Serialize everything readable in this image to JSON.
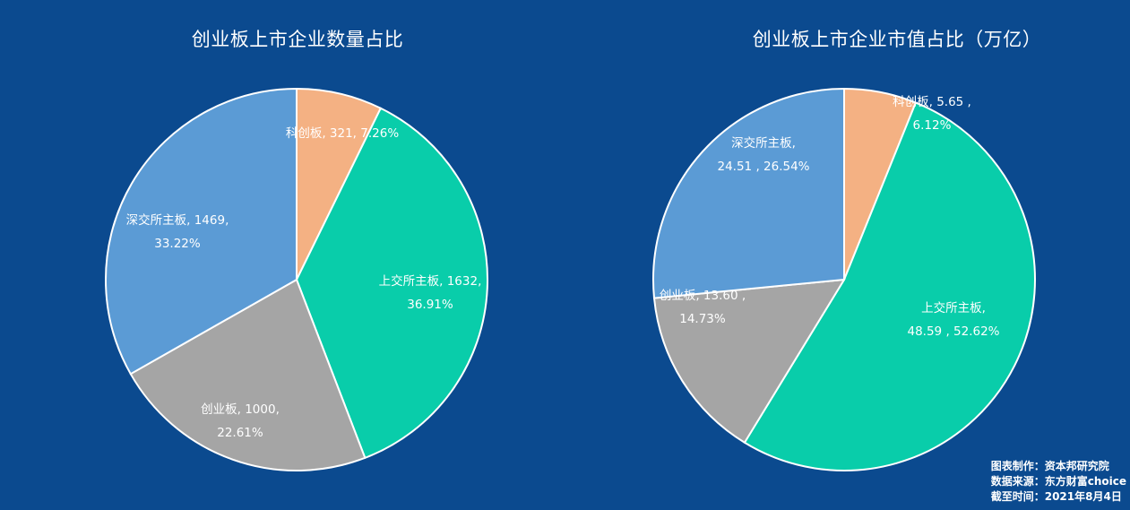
{
  "source": {
    "line1": "图表制作：资本邦研究院",
    "line2": "数据来源：东方财富choice",
    "line3": "截至时间：2021年8月4日"
  },
  "chart_data": [
    {
      "type": "pie",
      "title": "创业板上市企业数量占比",
      "slices": [
        {
          "name": "科创板",
          "value": 321,
          "percent": "7.26%",
          "color": "#f4b183"
        },
        {
          "name": "上交所主板",
          "value": 1632,
          "percent": "36.91%",
          "color": "#09cdaa"
        },
        {
          "name": "创业板",
          "value": 1000,
          "percent": "22.61%",
          "color": "#a5a5a5"
        },
        {
          "name": "深交所主板",
          "value": 1469,
          "percent": "33.22%",
          "color": "#5b9bd5"
        }
      ],
      "labels": [
        {
          "line1": "科创板, 321, 7.26%",
          "line2": ""
        },
        {
          "line1": "上交所主板, 1632,",
          "line2": "36.91%"
        },
        {
          "line1": "创业板, 1000,",
          "line2": "22.61%"
        },
        {
          "line1": "深交所主板, 1469,",
          "line2": "33.22%"
        }
      ]
    },
    {
      "type": "pie",
      "title": "创业板上市企业市值占比（万亿）",
      "slices": [
        {
          "name": "科创板",
          "value": 5.65,
          "percent": "6.12%",
          "color": "#f4b183"
        },
        {
          "name": "上交所主板",
          "value": 48.59,
          "percent": "52.62%",
          "color": "#09cdaa"
        },
        {
          "name": "创业板",
          "value": 13.6,
          "percent": "14.73%",
          "color": "#a5a5a5"
        },
        {
          "name": "深交所主板",
          "value": 24.51,
          "percent": "26.54%",
          "color": "#5b9bd5"
        }
      ],
      "labels": [
        {
          "line1": "科创板, 5.65 ,",
          "line2": "6.12%"
        },
        {
          "line1": "上交所主板,",
          "line2": "48.59 , 52.62%"
        },
        {
          "line1": "创业板, 13.60 ,",
          "line2": "14.73%"
        },
        {
          "line1": "深交所主板,",
          "line2": "24.51 , 26.54%"
        }
      ]
    }
  ]
}
